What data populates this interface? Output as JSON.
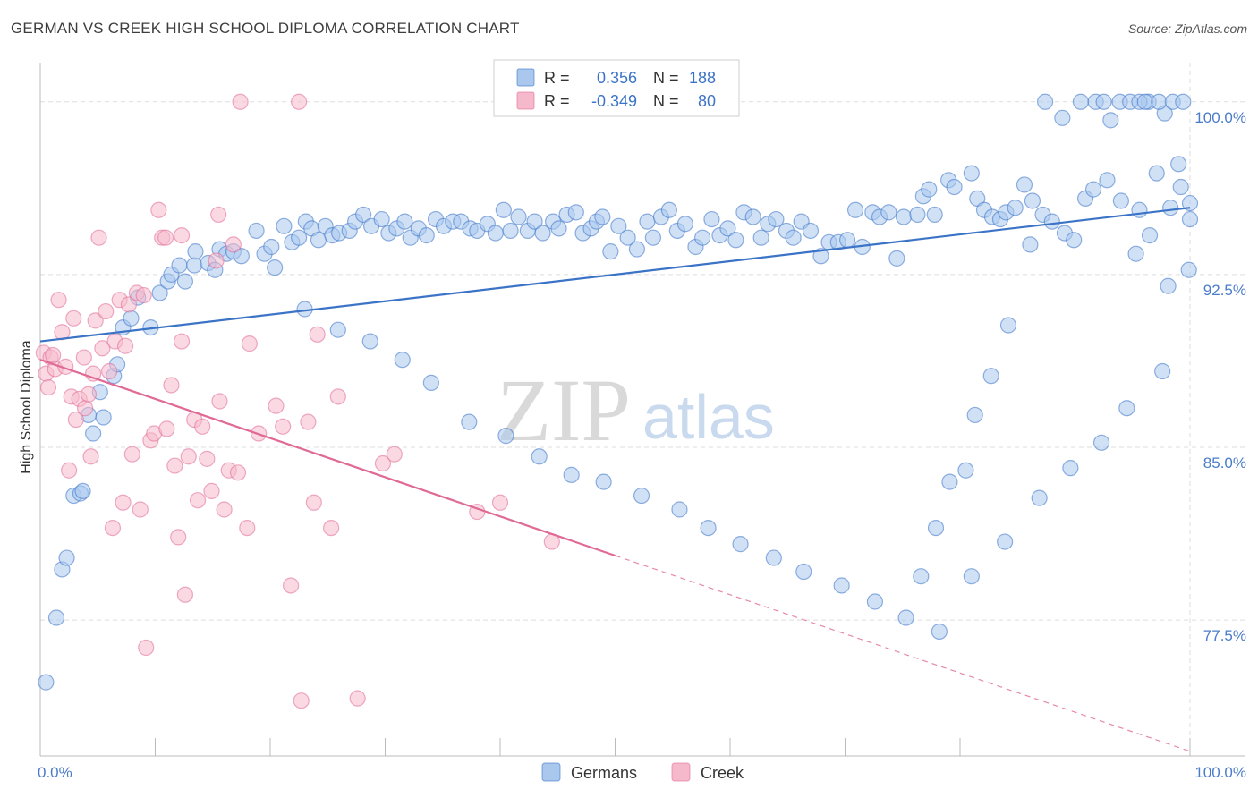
{
  "title": "GERMAN VS CREEK HIGH SCHOOL DIPLOMA CORRELATION CHART",
  "source": "Source: ZipAtlas.com",
  "watermark": {
    "part1": "ZIP",
    "part2": "atlas"
  },
  "colors": {
    "blue": "#3b73c6",
    "blue_fill": "#aac8ee",
    "pink": "#e06a95",
    "pink_fill": "#f6b9cc",
    "grid": "#dddddd",
    "tick": "#4a7cc9"
  },
  "chart_data": {
    "type": "scatter",
    "title": "GERMAN VS CREEK HIGH SCHOOL DIPLOMA CORRELATION CHART",
    "xlabel": "",
    "ylabel": "High School Diploma",
    "xlim": [
      0,
      100
    ],
    "ylim": [
      71.6,
      101.7
    ],
    "y_ticks": [
      77.5,
      85.0,
      92.5,
      100.0
    ],
    "y_tick_labels": [
      "77.5%",
      "85.0%",
      "92.5%",
      "100.0%"
    ],
    "x_tick_labels": [
      "0.0%",
      "100.0%"
    ],
    "grid": true,
    "legend_placement": "top-center",
    "legend": [
      {
        "r_label": "R =",
        "r_value": "0.356",
        "n_label": "N =",
        "n_value": "188"
      },
      {
        "r_label": "R =",
        "r_value": "-0.349",
        "n_label": "N =",
        "n_value": "80"
      }
    ],
    "series": [
      {
        "name": "Germans",
        "color": "#3b73c6",
        "trend": {
          "x0": 0,
          "y0": 89.6,
          "x1": 100,
          "y1": 95.4
        },
        "points": [
          [
            0.5,
            74.8
          ],
          [
            1.4,
            77.6
          ],
          [
            1.9,
            79.7
          ],
          [
            2.3,
            80.2
          ],
          [
            2.9,
            82.9
          ],
          [
            3.5,
            83.0
          ],
          [
            3.7,
            83.1
          ],
          [
            4.2,
            86.4
          ],
          [
            4.6,
            85.6
          ],
          [
            5.2,
            87.4
          ],
          [
            5.5,
            86.3
          ],
          [
            6.4,
            88.1
          ],
          [
            6.7,
            88.6
          ],
          [
            7.2,
            90.2
          ],
          [
            7.9,
            90.6
          ],
          [
            8.5,
            91.5
          ],
          [
            9.6,
            90.2
          ],
          [
            10.4,
            91.7
          ],
          [
            11.1,
            92.2
          ],
          [
            11.4,
            92.5
          ],
          [
            12.1,
            92.9
          ],
          [
            12.6,
            92.2
          ],
          [
            13.4,
            92.9
          ],
          [
            13.5,
            93.5
          ],
          [
            14.6,
            93.0
          ],
          [
            15.2,
            92.7
          ],
          [
            15.6,
            93.6
          ],
          [
            16.2,
            93.4
          ],
          [
            16.8,
            93.5
          ],
          [
            17.5,
            93.3
          ],
          [
            18.8,
            94.4
          ],
          [
            19.5,
            93.4
          ],
          [
            20.1,
            93.7
          ],
          [
            20.4,
            92.8
          ],
          [
            21.2,
            94.6
          ],
          [
            21.9,
            93.9
          ],
          [
            22.5,
            94.1
          ],
          [
            23.1,
            94.8
          ],
          [
            23.6,
            94.5
          ],
          [
            24.2,
            94.0
          ],
          [
            24.8,
            94.6
          ],
          [
            25.4,
            94.2
          ],
          [
            26.0,
            94.3
          ],
          [
            26.9,
            94.4
          ],
          [
            27.4,
            94.8
          ],
          [
            28.1,
            95.1
          ],
          [
            28.8,
            94.6
          ],
          [
            29.7,
            94.9
          ],
          [
            30.3,
            94.3
          ],
          [
            31.0,
            94.5
          ],
          [
            31.7,
            94.8
          ],
          [
            32.2,
            94.1
          ],
          [
            32.9,
            94.5
          ],
          [
            33.6,
            94.2
          ],
          [
            34.4,
            94.9
          ],
          [
            35.1,
            94.6
          ],
          [
            35.9,
            94.8
          ],
          [
            36.6,
            94.8
          ],
          [
            37.4,
            94.5
          ],
          [
            38.0,
            94.4
          ],
          [
            38.9,
            94.7
          ],
          [
            39.6,
            94.3
          ],
          [
            40.3,
            95.3
          ],
          [
            40.9,
            94.4
          ],
          [
            41.6,
            95.0
          ],
          [
            42.4,
            94.4
          ],
          [
            43.0,
            94.8
          ],
          [
            43.7,
            94.3
          ],
          [
            44.6,
            94.8
          ],
          [
            45.1,
            94.5
          ],
          [
            45.8,
            95.1
          ],
          [
            46.6,
            95.2
          ],
          [
            47.2,
            94.3
          ],
          [
            47.9,
            94.5
          ],
          [
            48.4,
            94.8
          ],
          [
            48.9,
            95.0
          ],
          [
            49.6,
            93.5
          ],
          [
            50.3,
            94.6
          ],
          [
            51.1,
            94.1
          ],
          [
            51.9,
            93.6
          ],
          [
            52.8,
            94.8
          ],
          [
            53.3,
            94.1
          ],
          [
            54.0,
            95.0
          ],
          [
            54.7,
            95.3
          ],
          [
            55.4,
            94.4
          ],
          [
            56.1,
            94.7
          ],
          [
            57.0,
            93.7
          ],
          [
            57.6,
            94.1
          ],
          [
            58.4,
            94.9
          ],
          [
            59.1,
            94.2
          ],
          [
            59.8,
            94.5
          ],
          [
            60.5,
            94.0
          ],
          [
            61.2,
            95.2
          ],
          [
            62.0,
            95.0
          ],
          [
            62.7,
            94.1
          ],
          [
            63.3,
            94.7
          ],
          [
            64.0,
            94.9
          ],
          [
            64.9,
            94.4
          ],
          [
            65.5,
            94.1
          ],
          [
            66.2,
            94.8
          ],
          [
            67.0,
            94.4
          ],
          [
            67.9,
            93.3
          ],
          [
            68.6,
            93.9
          ],
          [
            69.4,
            93.9
          ],
          [
            70.2,
            94.0
          ],
          [
            70.9,
            95.3
          ],
          [
            71.5,
            93.7
          ],
          [
            72.4,
            95.2
          ],
          [
            73.0,
            95.0
          ],
          [
            73.8,
            95.2
          ],
          [
            74.5,
            93.2
          ],
          [
            75.1,
            95.0
          ],
          [
            76.3,
            95.1
          ],
          [
            76.8,
            95.9
          ],
          [
            77.3,
            96.2
          ],
          [
            77.8,
            95.1
          ],
          [
            79.0,
            96.6
          ],
          [
            79.5,
            96.3
          ],
          [
            81.0,
            96.9
          ],
          [
            81.5,
            95.8
          ],
          [
            82.1,
            95.3
          ],
          [
            82.8,
            95.0
          ],
          [
            83.5,
            94.9
          ],
          [
            84.0,
            95.2
          ],
          [
            84.8,
            95.4
          ],
          [
            85.6,
            96.4
          ],
          [
            86.3,
            95.7
          ],
          [
            87.2,
            95.1
          ],
          [
            88.0,
            94.8
          ],
          [
            89.1,
            94.3
          ],
          [
            89.9,
            94.0
          ],
          [
            90.9,
            95.8
          ],
          [
            91.6,
            96.2
          ],
          [
            92.8,
            96.6
          ],
          [
            94.0,
            95.7
          ],
          [
            95.6,
            95.3
          ],
          [
            96.5,
            94.2
          ],
          [
            97.1,
            96.9
          ],
          [
            98.3,
            95.4
          ],
          [
            99.0,
            97.3
          ],
          [
            100.0,
            95.6
          ],
          [
            23.0,
            91.0
          ],
          [
            25.9,
            90.1
          ],
          [
            28.7,
            89.6
          ],
          [
            31.5,
            88.8
          ],
          [
            34.0,
            87.8
          ],
          [
            37.3,
            86.1
          ],
          [
            40.5,
            85.5
          ],
          [
            43.4,
            84.6
          ],
          [
            46.2,
            83.8
          ],
          [
            49.0,
            83.5
          ],
          [
            52.3,
            82.9
          ],
          [
            55.6,
            82.3
          ],
          [
            58.1,
            81.5
          ],
          [
            60.9,
            80.8
          ],
          [
            63.8,
            80.2
          ],
          [
            66.4,
            79.6
          ],
          [
            69.7,
            79.0
          ],
          [
            72.6,
            78.3
          ],
          [
            75.3,
            77.6
          ],
          [
            78.2,
            77.0
          ],
          [
            81.0,
            79.4
          ],
          [
            83.9,
            80.9
          ],
          [
            86.9,
            82.8
          ],
          [
            89.6,
            84.1
          ],
          [
            92.3,
            85.2
          ],
          [
            94.5,
            86.7
          ],
          [
            97.6,
            88.3
          ],
          [
            93.1,
            99.2
          ],
          [
            95.3,
            93.4
          ],
          [
            98.1,
            92.0
          ],
          [
            96.4,
            100.0
          ],
          [
            97.8,
            99.5
          ],
          [
            99.2,
            96.3
          ],
          [
            99.9,
            92.7
          ],
          [
            100.0,
            94.9
          ],
          [
            90.5,
            100.0
          ],
          [
            91.8,
            100.0
          ],
          [
            92.5,
            100.0
          ],
          [
            93.9,
            100.0
          ],
          [
            94.8,
            100.0
          ],
          [
            95.6,
            100.0
          ],
          [
            96.1,
            100.0
          ],
          [
            97.3,
            100.0
          ],
          [
            98.5,
            100.0
          ],
          [
            99.4,
            100.0
          ],
          [
            88.9,
            99.3
          ],
          [
            87.4,
            100.0
          ],
          [
            86.1,
            93.8
          ],
          [
            84.2,
            90.3
          ],
          [
            82.7,
            88.1
          ],
          [
            81.3,
            86.4
          ],
          [
            80.5,
            84.0
          ],
          [
            79.1,
            83.5
          ],
          [
            77.9,
            81.5
          ],
          [
            76.6,
            79.4
          ]
        ]
      },
      {
        "name": "Creek",
        "color": "#e06a95",
        "trend": {
          "x0": 0,
          "y0": 88.8,
          "x1": 50,
          "y1": 80.3
        },
        "trend_dashed": {
          "x0": 50,
          "y0": 80.3,
          "x1": 100,
          "y1": 71.8
        },
        "points": [
          [
            0.3,
            89.1
          ],
          [
            0.5,
            88.2
          ],
          [
            0.7,
            87.6
          ],
          [
            0.9,
            88.9
          ],
          [
            1.1,
            89.0
          ],
          [
            1.3,
            88.4
          ],
          [
            1.6,
            91.4
          ],
          [
            1.9,
            90.0
          ],
          [
            2.2,
            88.5
          ],
          [
            2.5,
            84.0
          ],
          [
            2.7,
            87.2
          ],
          [
            2.9,
            90.6
          ],
          [
            3.1,
            86.2
          ],
          [
            3.4,
            87.1
          ],
          [
            3.8,
            88.9
          ],
          [
            3.9,
            86.7
          ],
          [
            4.2,
            87.3
          ],
          [
            4.4,
            84.6
          ],
          [
            4.6,
            88.2
          ],
          [
            4.8,
            90.5
          ],
          [
            5.1,
            94.1
          ],
          [
            5.4,
            89.3
          ],
          [
            5.7,
            90.9
          ],
          [
            6.0,
            88.3
          ],
          [
            6.3,
            81.5
          ],
          [
            6.5,
            89.6
          ],
          [
            6.9,
            91.4
          ],
          [
            7.2,
            82.6
          ],
          [
            7.4,
            89.4
          ],
          [
            7.7,
            91.2
          ],
          [
            8.0,
            84.7
          ],
          [
            8.4,
            91.7
          ],
          [
            8.7,
            82.3
          ],
          [
            9.0,
            91.6
          ],
          [
            9.2,
            76.3
          ],
          [
            9.6,
            85.3
          ],
          [
            9.9,
            85.6
          ],
          [
            10.3,
            95.3
          ],
          [
            10.6,
            94.1
          ],
          [
            11.0,
            85.8
          ],
          [
            11.4,
            87.7
          ],
          [
            11.7,
            84.2
          ],
          [
            12.0,
            81.1
          ],
          [
            12.3,
            89.6
          ],
          [
            12.6,
            78.6
          ],
          [
            12.9,
            84.6
          ],
          [
            13.4,
            86.2
          ],
          [
            13.7,
            82.7
          ],
          [
            14.1,
            85.9
          ],
          [
            14.5,
            84.5
          ],
          [
            14.9,
            83.1
          ],
          [
            15.3,
            93.1
          ],
          [
            15.6,
            87.0
          ],
          [
            16.0,
            82.3
          ],
          [
            16.4,
            84.0
          ],
          [
            16.8,
            93.8
          ],
          [
            17.2,
            83.9
          ],
          [
            18.0,
            81.5
          ],
          [
            18.2,
            89.5
          ],
          [
            19.0,
            85.6
          ],
          [
            20.5,
            86.8
          ],
          [
            21.1,
            85.9
          ],
          [
            21.8,
            79.0
          ],
          [
            22.5,
            100.0
          ],
          [
            22.7,
            74.0
          ],
          [
            23.3,
            86.1
          ],
          [
            23.8,
            82.6
          ],
          [
            24.1,
            89.9
          ],
          [
            25.3,
            81.5
          ],
          [
            25.9,
            87.2
          ],
          [
            27.6,
            74.1
          ],
          [
            29.8,
            84.3
          ],
          [
            30.8,
            84.7
          ],
          [
            38.0,
            82.2
          ],
          [
            40.0,
            82.6
          ],
          [
            44.5,
            80.9
          ],
          [
            17.4,
            100.0
          ],
          [
            15.5,
            95.1
          ],
          [
            12.3,
            94.2
          ],
          [
            10.9,
            94.1
          ]
        ]
      }
    ]
  },
  "bottom_legend": [
    {
      "label": "Germans",
      "color": "#3b73c6"
    },
    {
      "label": "Creek",
      "color": "#e06a95"
    }
  ]
}
